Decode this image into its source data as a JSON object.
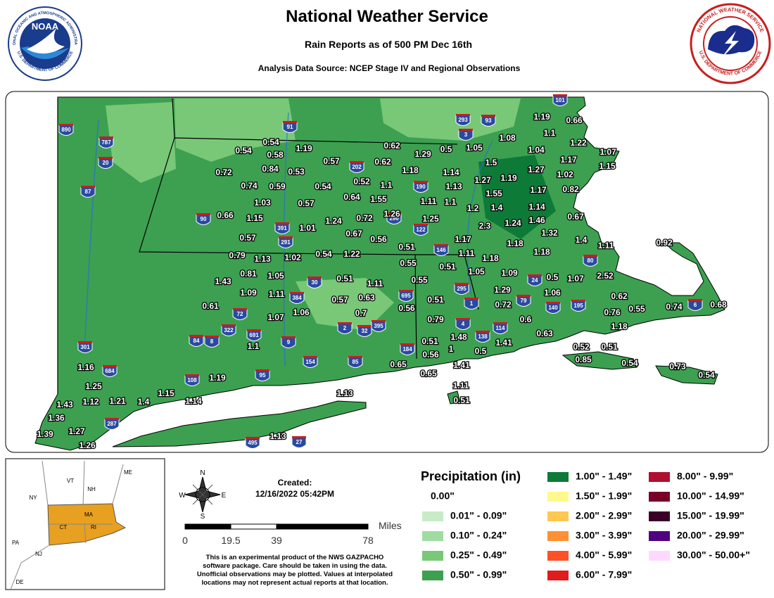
{
  "header": {
    "title": "National Weather Service",
    "subtitle": "Rain Reports as of 500 PM Dec 16th",
    "source": "Analysis Data Source: NCEP Stage IV and Regional Observations"
  },
  "logos": {
    "noaa": "NOAA",
    "noaa_ring": "NATIONAL OCEANIC AND ATMOSPHERIC ADMINISTRATION",
    "noaa_bottom": "U.S. DEPARTMENT OF COMMERCE",
    "nws_ring": "NATIONAL WEATHER SERVICE",
    "nws_bottom": "U.S. DEPARTMENT OF COMMERCE"
  },
  "map": {
    "reports": [
      1.19,
      0.66,
      1.1,
      1.08,
      1.22,
      1.07,
      1.04,
      1.17,
      1.15,
      0.54,
      0.54,
      0.58,
      1.19,
      0.62,
      1.29,
      0.5,
      1.05,
      0.84,
      0.53,
      0.57,
      0.62,
      0.72,
      1.18,
      1.14,
      1.5,
      1.27,
      1.02,
      0.74,
      0.59,
      0.54,
      0.52,
      1.1,
      1.13,
      1.27,
      1.19,
      1.17,
      0.82,
      0.57,
      0.64,
      1.55,
      1.11,
      1.1,
      1.55,
      1.03,
      1.2,
      1.4,
      1.14,
      1.15,
      0.66,
      1.24,
      0.72,
      1.26,
      1.25,
      1.46,
      0.67,
      1.01,
      2.3,
      1.24,
      0.67,
      1.32,
      0.57,
      0.56,
      1.17,
      1.4,
      0.51,
      1.18,
      1.11,
      0.92,
      0.79,
      1.13,
      1.02,
      0.54,
      1.22,
      1.11,
      1.18,
      0.55,
      0.51,
      1.18,
      0.81,
      1.05,
      1.05,
      1.09,
      0.5,
      1.07,
      2.52,
      1.43,
      0.51,
      1.11,
      0.55,
      1.09,
      1.11,
      0.57,
      0.63,
      0.51,
      1.29,
      1.06,
      0.62,
      0.61,
      1.06,
      0.7,
      0.56,
      0.72,
      0.76,
      0.55,
      0.74,
      0.68,
      1.07,
      0.79,
      0.6,
      1.18,
      1.48,
      0.63,
      0.51,
      1.41,
      1.1,
      0.5,
      0.52,
      0.51,
      0.56,
      1,
      0.85,
      0.54,
      0.73,
      0.54,
      1.16,
      0.65,
      1.41,
      0.65,
      1.19,
      1.25,
      1.11,
      1.13,
      1.15,
      0.51,
      1.43,
      1.12,
      1.21,
      1.4,
      1.14,
      1.36,
      1.27,
      1.39,
      1.13,
      1.26
    ],
    "highways": [
      101,
      293,
      93,
      3,
      890,
      787,
      20,
      87,
      91,
      202,
      190,
      290,
      122,
      90,
      391,
      291,
      146,
      80,
      24,
      295,
      1,
      79,
      140,
      195,
      6,
      384,
      30,
      72,
      691,
      695,
      4,
      2,
      32,
      395,
      322,
      84,
      8,
      9,
      138,
      114,
      301,
      684,
      154,
      85,
      184,
      108,
      95,
      287,
      495,
      27
    ]
  },
  "inset": {
    "states": [
      "ME",
      "VT",
      "NH",
      "NY",
      "MA",
      "CT",
      "RI",
      "PA",
      "NJ",
      "DE"
    ]
  },
  "compass": {
    "n": "N",
    "e": "E",
    "s": "S",
    "w": "W"
  },
  "created": {
    "label": "Created:",
    "timestamp": "12/16/2022 05:42PM"
  },
  "scale": {
    "unit": "Miles",
    "ticks": [
      0,
      19.5,
      39,
      78
    ]
  },
  "disclaimer": [
    "This is an experimental product of the NWS GAZPACHO",
    "software package. Care should be taken in using the data.",
    "Unofficial observations may be plotted. Values at interpolated",
    "locations may not represent actual reports at that location."
  ],
  "legend": {
    "title": "Precipitation (in)",
    "items": [
      {
        "label": "0.00\"",
        "color": "#ffffff"
      },
      {
        "label": "0.01\" - 0.09\"",
        "color": "#c8ecc8"
      },
      {
        "label": "0.10\" - 0.24\"",
        "color": "#a0dca0"
      },
      {
        "label": "0.25\" - 0.49\"",
        "color": "#78c878"
      },
      {
        "label": "0.50\" - 0.99\"",
        "color": "#3ca050"
      },
      {
        "label": "1.00\" - 1.49\"",
        "color": "#0e7a38"
      },
      {
        "label": "1.50\" - 1.99\"",
        "color": "#fff88c"
      },
      {
        "label": "2.00\" - 2.99\"",
        "color": "#ffc850"
      },
      {
        "label": "3.00\" - 3.99\"",
        "color": "#ff9034"
      },
      {
        "label": "4.00\" - 5.99\"",
        "color": "#ff5028"
      },
      {
        "label": "6.00\" - 7.99\"",
        "color": "#e01c1c"
      },
      {
        "label": "8.00\" - 9.99\"",
        "color": "#b00f30"
      },
      {
        "label": "10.00\" - 14.99\"",
        "color": "#780028"
      },
      {
        "label": "15.00\" - 19.99\"",
        "color": "#3c0028"
      },
      {
        "label": "20.00\" - 29.99\"",
        "color": "#500080"
      },
      {
        "label": "30.00\" - 50.00+\"",
        "color": "#ffd8ff"
      }
    ]
  }
}
